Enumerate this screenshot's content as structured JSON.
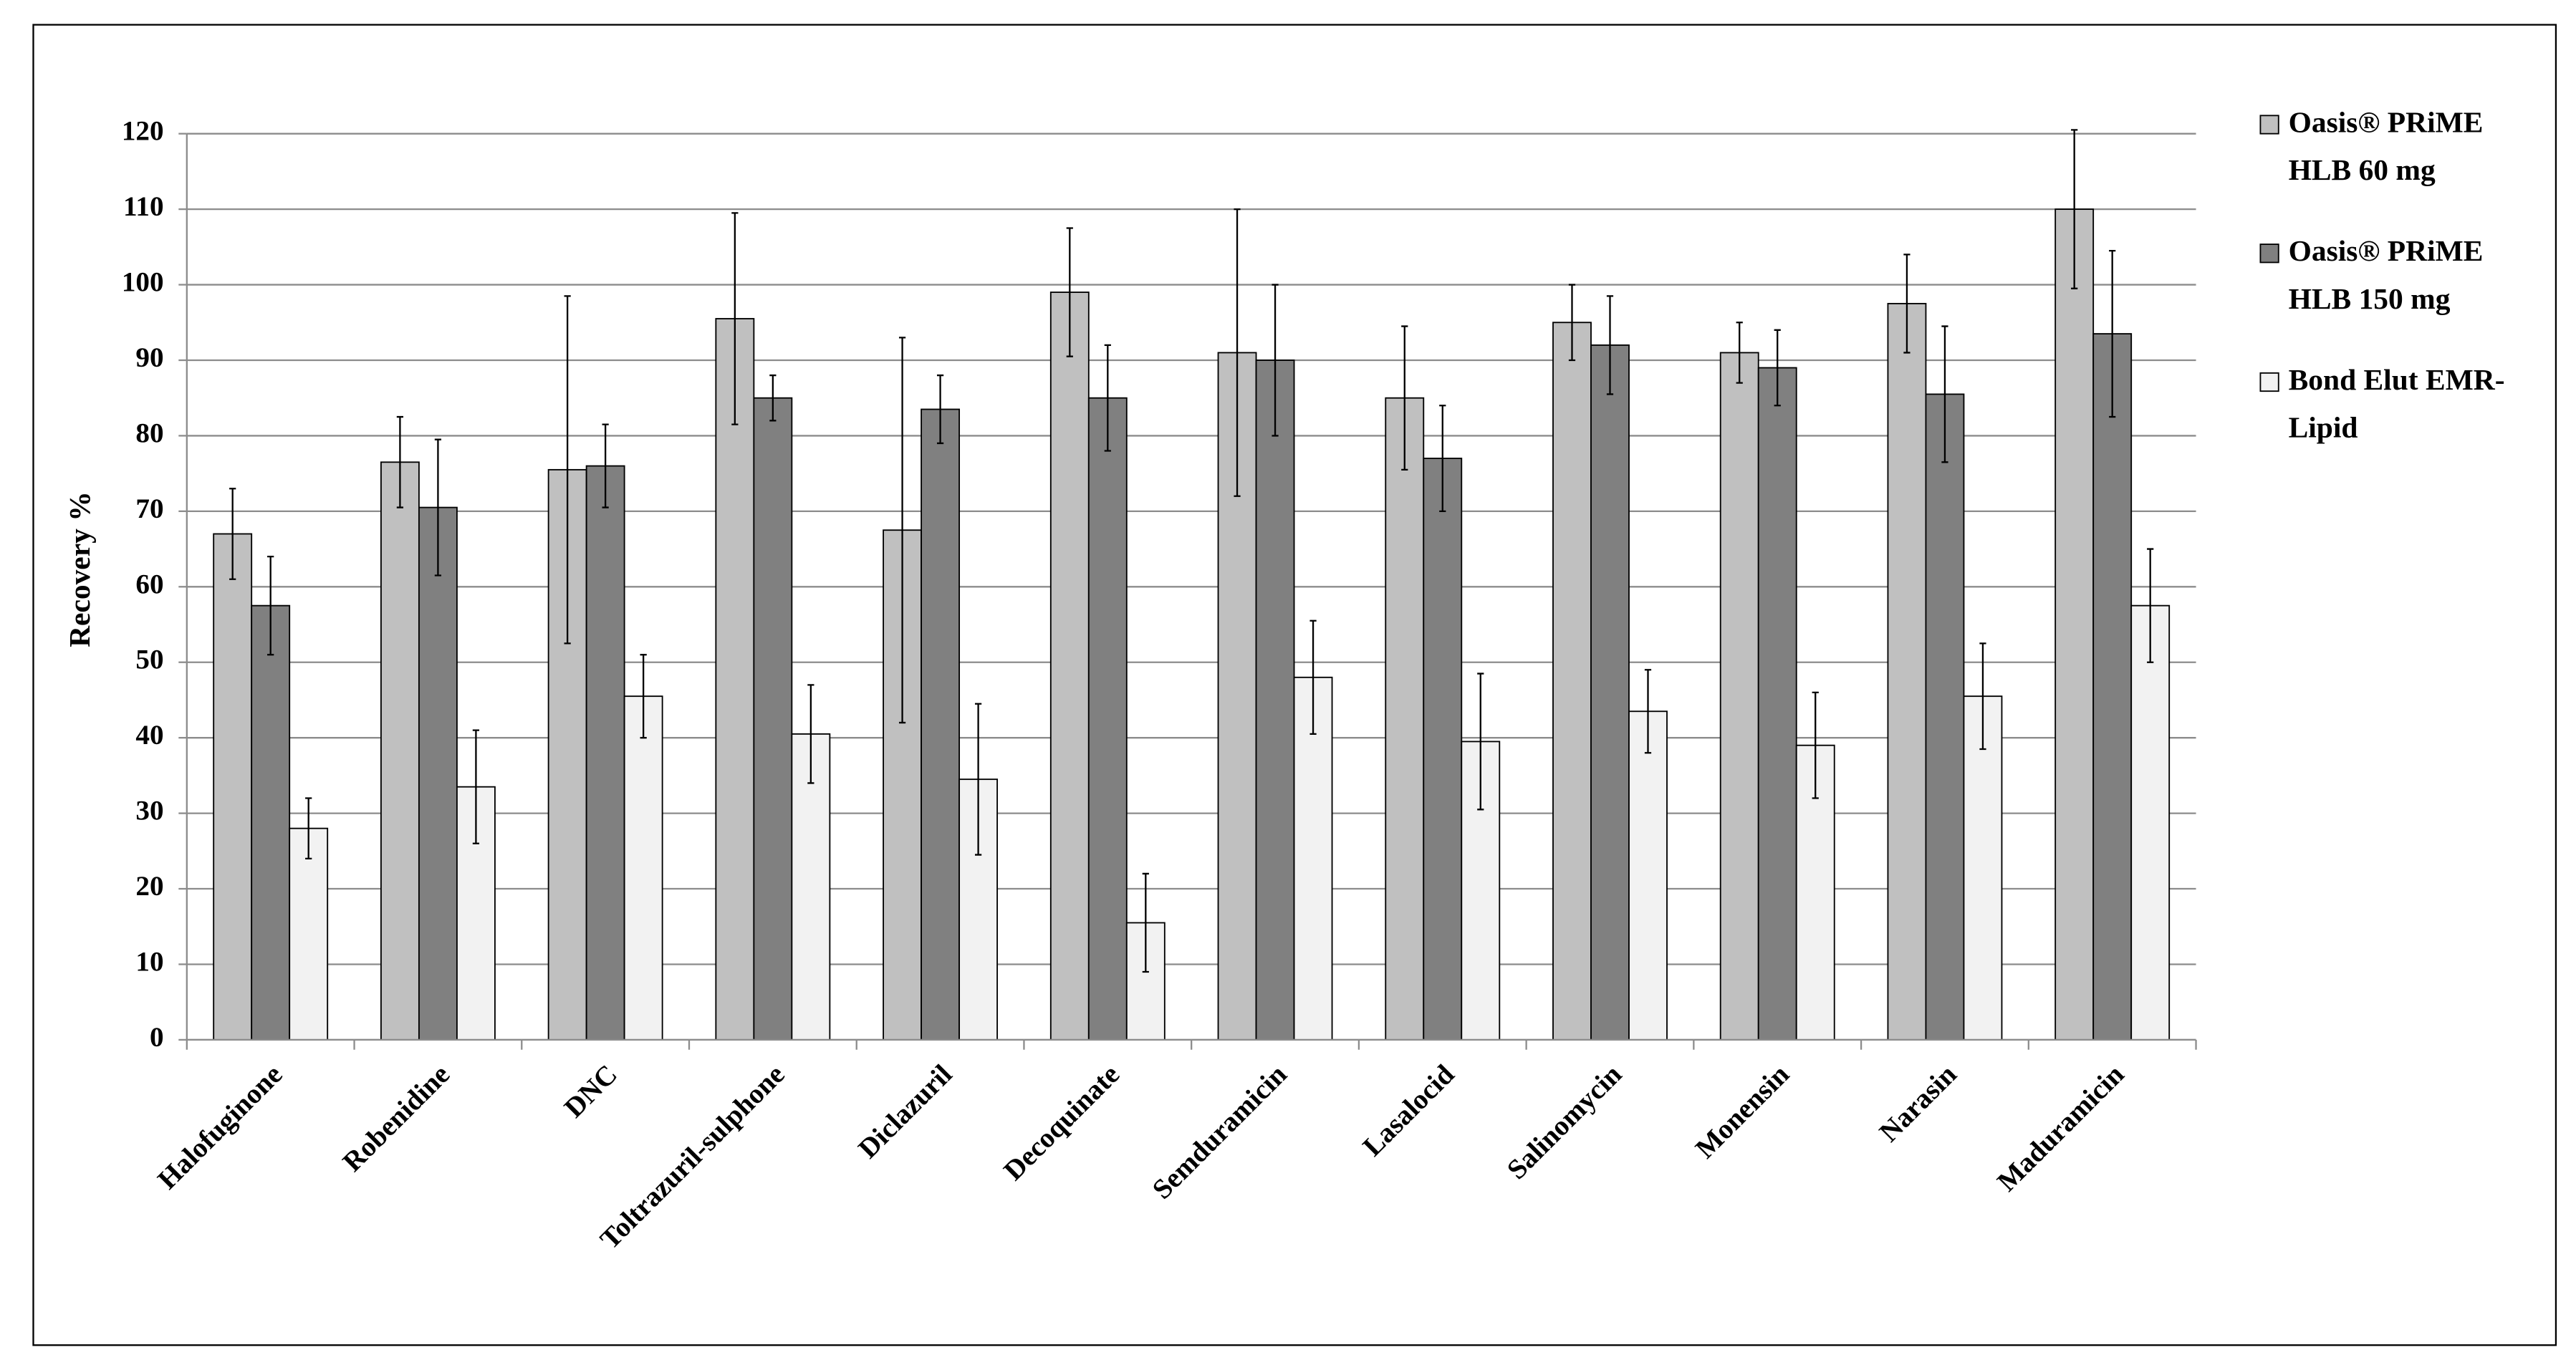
{
  "chart_data": {
    "type": "bar",
    "y_label": "Recovery %",
    "categories": [
      "Halofuginone",
      "Robenidine",
      "DNC",
      "Toltrazuril-sulphone",
      "Diclazuril",
      "Decoquinate",
      "Semduramicin",
      "Lasalocid",
      "Salinomycin",
      "Monensin",
      "Narasin",
      "Maduramicin"
    ],
    "series": [
      {
        "name": "Oasis® PRiME HLB 60 mg",
        "color": "#c0c0c0",
        "values": [
          67,
          76.5,
          75.5,
          95.5,
          67.5,
          99,
          91,
          85,
          95,
          91,
          97.5,
          110
        ],
        "errors": [
          6,
          6,
          23,
          14,
          25.5,
          8.5,
          19,
          9.5,
          5,
          4,
          6.5,
          10.5
        ]
      },
      {
        "name": "Oasis® PRiME HLB 150 mg",
        "color": "#808080",
        "values": [
          57.5,
          70.5,
          76,
          85,
          83.5,
          85,
          90,
          77,
          92,
          89,
          85.5,
          93.5
        ],
        "errors": [
          6.5,
          9,
          5.5,
          3,
          4.5,
          7,
          10,
          7,
          6.5,
          5,
          9,
          11
        ]
      },
      {
        "name": "Bond Elut EMR-Lipid",
        "color": "#f2f2f2",
        "values": [
          28,
          33.5,
          45.5,
          40.5,
          34.5,
          15.5,
          48,
          39.5,
          43.5,
          39,
          45.5,
          57.5
        ],
        "errors": [
          4,
          7.5,
          5.5,
          6.5,
          10,
          6.5,
          7.5,
          9,
          5.5,
          7,
          7,
          7.5
        ]
      }
    ],
    "ylim": [
      0,
      120
    ],
    "yticks": [
      0,
      10,
      20,
      30,
      40,
      50,
      60,
      70,
      80,
      90,
      100,
      110,
      120
    ],
    "grid": true,
    "legend": "right"
  }
}
